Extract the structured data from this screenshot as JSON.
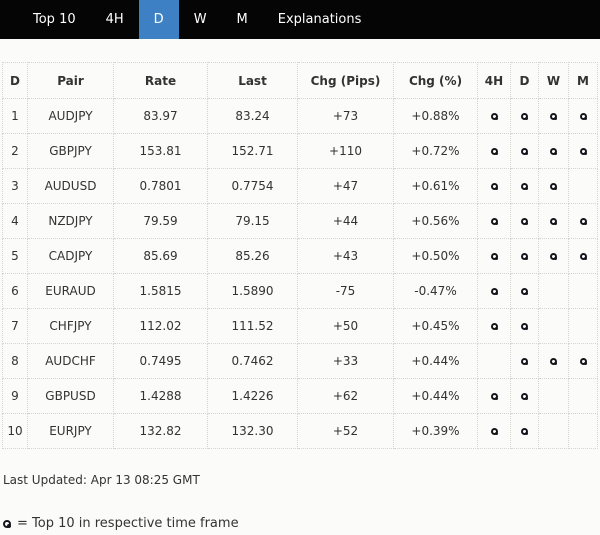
{
  "tabs": [
    {
      "label": "Top 10",
      "active": false
    },
    {
      "label": "4H",
      "active": false
    },
    {
      "label": "D",
      "active": true
    },
    {
      "label": "W",
      "active": false
    },
    {
      "label": "M",
      "active": false
    },
    {
      "label": "Explanations",
      "active": false
    }
  ],
  "table": {
    "columns": [
      "D",
      "Pair",
      "Rate",
      "Last",
      "Chg (Pips)",
      "Chg (%)",
      "4H",
      "D",
      "W",
      "M"
    ],
    "rows": [
      {
        "rank": "1",
        "pair": "AUDJPY",
        "rate": "83.97",
        "last": "83.24",
        "chg_pips": "+73",
        "chg_pct": "+0.88%",
        "top10_in": [
          "4H",
          "D",
          "W",
          "M"
        ]
      },
      {
        "rank": "2",
        "pair": "GBPJPY",
        "rate": "153.81",
        "last": "152.71",
        "chg_pips": "+110",
        "chg_pct": "+0.72%",
        "top10_in": [
          "4H",
          "D",
          "W",
          "M"
        ]
      },
      {
        "rank": "3",
        "pair": "AUDUSD",
        "rate": "0.7801",
        "last": "0.7754",
        "chg_pips": "+47",
        "chg_pct": "+0.61%",
        "top10_in": [
          "4H",
          "D",
          "W"
        ]
      },
      {
        "rank": "4",
        "pair": "NZDJPY",
        "rate": "79.59",
        "last": "79.15",
        "chg_pips": "+44",
        "chg_pct": "+0.56%",
        "top10_in": [
          "4H",
          "D",
          "W",
          "M"
        ]
      },
      {
        "rank": "5",
        "pair": "CADJPY",
        "rate": "85.69",
        "last": "85.26",
        "chg_pips": "+43",
        "chg_pct": "+0.50%",
        "top10_in": [
          "4H",
          "D",
          "W",
          "M"
        ]
      },
      {
        "rank": "6",
        "pair": "EURAUD",
        "rate": "1.5815",
        "last": "1.5890",
        "chg_pips": "-75",
        "chg_pct": "-0.47%",
        "top10_in": [
          "4H",
          "D"
        ]
      },
      {
        "rank": "7",
        "pair": "CHFJPY",
        "rate": "112.02",
        "last": "111.52",
        "chg_pips": "+50",
        "chg_pct": "+0.45%",
        "top10_in": [
          "4H",
          "D"
        ]
      },
      {
        "rank": "8",
        "pair": "AUDCHF",
        "rate": "0.7495",
        "last": "0.7462",
        "chg_pips": "+33",
        "chg_pct": "+0.44%",
        "top10_in": [
          "D",
          "W",
          "M"
        ]
      },
      {
        "rank": "9",
        "pair": "GBPUSD",
        "rate": "1.4288",
        "last": "1.4226",
        "chg_pips": "+62",
        "chg_pct": "+0.44%",
        "top10_in": [
          "4H",
          "D"
        ]
      },
      {
        "rank": "10",
        "pair": "EURJPY",
        "rate": "132.82",
        "last": "132.30",
        "chg_pips": "+52",
        "chg_pct": "+0.39%",
        "top10_in": [
          "4H",
          "D"
        ]
      }
    ]
  },
  "footer": {
    "last_updated": "Last Updated: Apr 13 08:25 GMT",
    "legend": "= Top 10 in respective time frame",
    "legend_icon": "bullseye-icon"
  },
  "colors": {
    "tabbar_bg": "#050505",
    "active_tab": "#3d80c4",
    "marker": "#15151c",
    "text": "#333333"
  }
}
